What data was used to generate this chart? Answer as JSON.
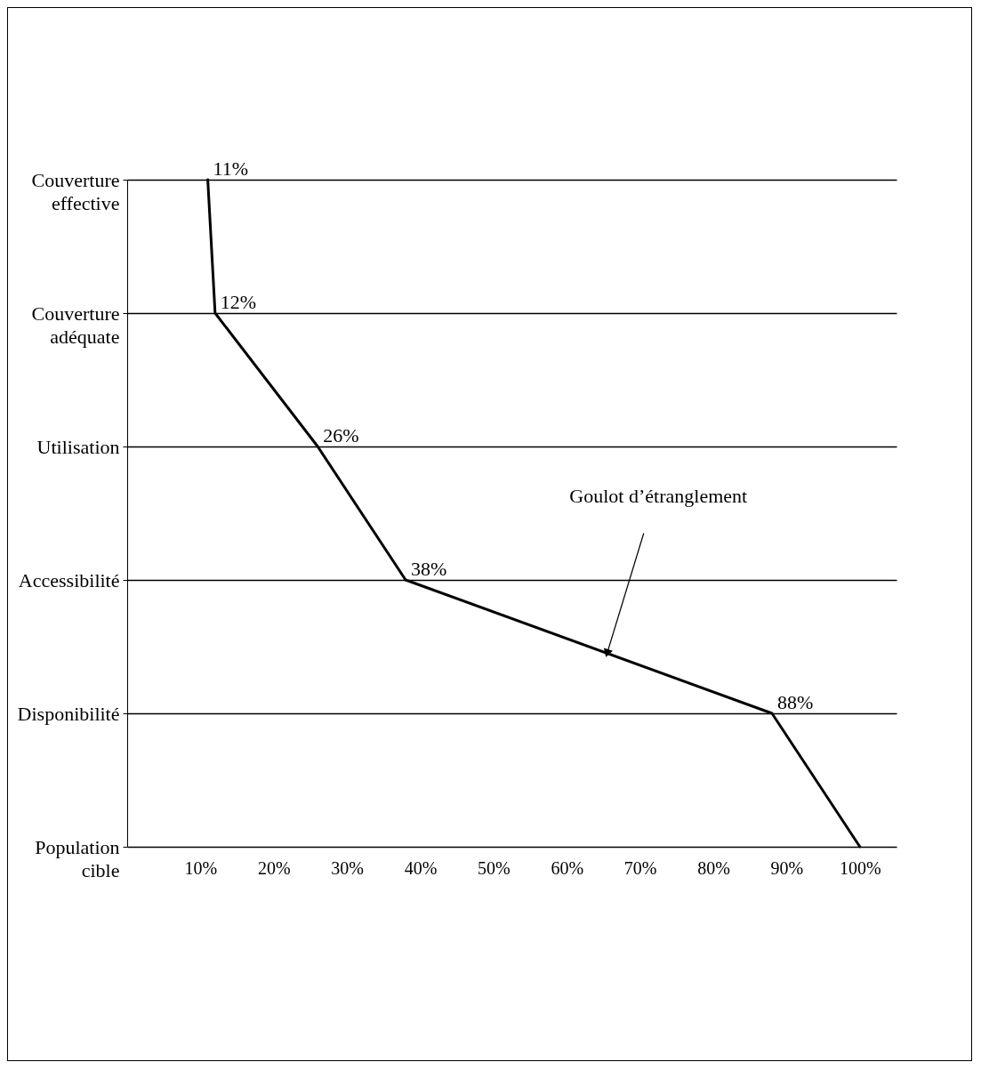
{
  "chart_data": {
    "type": "line",
    "orientation": "horizontal",
    "categories": [
      "Couverture effective",
      "Couverture adéquate",
      "Utilisation",
      "Accessibilité",
      "Disponibilité",
      "Population cible"
    ],
    "values": [
      11,
      12,
      26,
      38,
      88,
      100
    ],
    "value_labels": [
      "11%",
      "12%",
      "26%",
      "38%",
      "88%",
      null
    ],
    "color": "#000000",
    "xlim": [
      0,
      105
    ],
    "xticks": [
      {
        "value": 10,
        "label": "10%"
      },
      {
        "value": 20,
        "label": "20%"
      },
      {
        "value": 30,
        "label": "30%"
      },
      {
        "value": 40,
        "label": "40%"
      },
      {
        "value": 50,
        "label": "50%"
      },
      {
        "value": 60,
        "label": "60%"
      },
      {
        "value": 70,
        "label": "70%"
      },
      {
        "value": 80,
        "label": "80%"
      },
      {
        "value": 90,
        "label": "90%"
      },
      {
        "value": 100,
        "label": "100%"
      }
    ],
    "grid": "y",
    "annotations": [
      "Goulot d’étranglement"
    ]
  }
}
